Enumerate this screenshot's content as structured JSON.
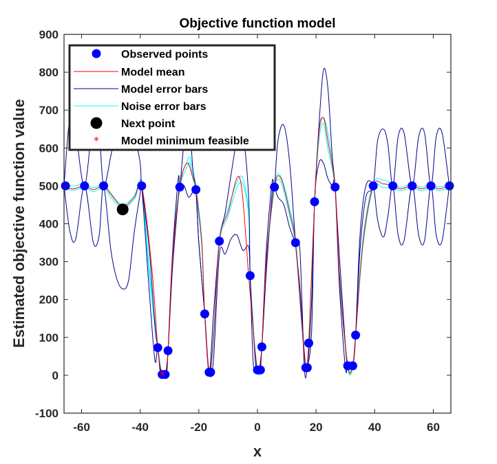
{
  "chart_data": {
    "type": "line",
    "title": "Objective function model",
    "xlabel": "x",
    "ylabel": "Estimated objective function value",
    "xlim": [
      -66,
      66
    ],
    "ylim": [
      -100,
      900
    ],
    "xticks": [
      -60,
      -40,
      -20,
      0,
      20,
      40,
      60
    ],
    "yticks": [
      -100,
      0,
      100,
      200,
      300,
      400,
      500,
      600,
      700,
      800,
      900
    ],
    "legend_position": "top-left",
    "colors": {
      "observed": "#0000ff",
      "model_mean": "#ff0000",
      "model_error": "#00008b",
      "noise_error": "#00ffff",
      "next_point": "#000000",
      "model_min": "#ff0000"
    },
    "legend": [
      "Observed points",
      "Model mean",
      "Model error bars",
      "Noise error bars",
      "Next point",
      "Model minimum feasible"
    ],
    "observed_points": [
      {
        "x": -65.5,
        "y": 500
      },
      {
        "x": -59,
        "y": 500
      },
      {
        "x": -52.5,
        "y": 500
      },
      {
        "x": -39.5,
        "y": 500
      },
      {
        "x": -34,
        "y": 73
      },
      {
        "x": -32.5,
        "y": 2
      },
      {
        "x": -31.5,
        "y": 2
      },
      {
        "x": -30.5,
        "y": 65
      },
      {
        "x": -26.5,
        "y": 497
      },
      {
        "x": -21,
        "y": 490
      },
      {
        "x": -18,
        "y": 162
      },
      {
        "x": -16.5,
        "y": 8
      },
      {
        "x": -16,
        "y": 8
      },
      {
        "x": -13,
        "y": 354
      },
      {
        "x": -2.5,
        "y": 263
      },
      {
        "x": 0,
        "y": 14
      },
      {
        "x": 1,
        "y": 14
      },
      {
        "x": 1.5,
        "y": 75
      },
      {
        "x": 5.8,
        "y": 497
      },
      {
        "x": 13,
        "y": 350
      },
      {
        "x": 16.5,
        "y": 20
      },
      {
        "x": 17,
        "y": 20
      },
      {
        "x": 17.5,
        "y": 85
      },
      {
        "x": 19.5,
        "y": 458
      },
      {
        "x": 26.5,
        "y": 497
      },
      {
        "x": 30.8,
        "y": 25
      },
      {
        "x": 32.5,
        "y": 25
      },
      {
        "x": 33.5,
        "y": 106
      },
      {
        "x": 39.5,
        "y": 500
      },
      {
        "x": 46.2,
        "y": 500
      },
      {
        "x": 52.8,
        "y": 500
      },
      {
        "x": 59.2,
        "y": 500
      },
      {
        "x": 65.5,
        "y": 500
      }
    ],
    "next_point": {
      "x": -46,
      "y": 438
    },
    "model_minimum": {
      "x": -32.5,
      "y": 2
    },
    "model_mean": {
      "x": [
        -66,
        -63,
        -59,
        -56,
        -52.5,
        -50,
        -46,
        -42,
        -39.5,
        -36,
        -34,
        -32.5,
        -31,
        -30.5,
        -29,
        -26.5,
        -24,
        -22,
        -21,
        -19,
        -18,
        -16.5,
        -15,
        -13,
        -10,
        -6,
        -3,
        -1,
        0,
        1,
        1.5,
        3,
        5.8,
        8,
        11,
        13,
        15,
        16.5,
        17.5,
        19.5,
        21,
        22.5,
        24,
        26.5,
        28,
        30.8,
        32.5,
        33.5,
        36,
        39.5,
        43,
        46.2,
        49,
        52.8,
        56,
        59.2,
        62,
        65.5
      ],
      "y": [
        500,
        492,
        500,
        490,
        500,
        478,
        445,
        470,
        500,
        280,
        73,
        2,
        5,
        65,
        310,
        497,
        560,
        520,
        490,
        350,
        162,
        8,
        100,
        354,
        430,
        520,
        263,
        80,
        14,
        14,
        75,
        300,
        497,
        520,
        430,
        350,
        150,
        20,
        85,
        458,
        640,
        680,
        620,
        497,
        260,
        25,
        25,
        106,
        350,
        500,
        505,
        500,
        492,
        500,
        492,
        500,
        492,
        500
      ]
    },
    "model_error_upper": {
      "x": [
        -66,
        -64,
        -62,
        -59,
        -56,
        -54,
        -52.5,
        -50,
        -48,
        -46,
        -44,
        -42,
        -40,
        -39.5,
        -37,
        -35,
        -34,
        -33,
        -31.5,
        -30.5,
        -29,
        -27,
        -26.5,
        -25,
        -23.5,
        -22,
        -21,
        -20,
        -18,
        -16.5,
        -15,
        -13,
        -11,
        -9,
        -7,
        -5,
        -3,
        -2.5,
        -1.5,
        -0.5,
        0.5,
        1.5,
        3,
        5,
        5.8,
        7,
        9,
        11,
        13,
        14.5,
        16,
        17,
        18.5,
        19.5,
        21,
        22.5,
        24,
        25.5,
        26.5,
        28,
        30,
        30.8,
        32.5,
        33.5,
        35,
        37,
        39.5,
        41,
        43,
        44.5,
        46.2,
        48,
        50,
        52.8,
        55,
        57,
        59.2,
        61,
        63,
        65.5,
        66
      ],
      "y": [
        500,
        680,
        640,
        500,
        680,
        640,
        500,
        580,
        660,
        690,
        665,
        630,
        560,
        500,
        340,
        130,
        73,
        3,
        2,
        65,
        320,
        520,
        497,
        620,
        690,
        540,
        490,
        350,
        162,
        8,
        160,
        354,
        430,
        530,
        620,
        640,
        470,
        263,
        130,
        20,
        14,
        75,
        330,
        510,
        497,
        620,
        660,
        560,
        350,
        230,
        60,
        20,
        200,
        458,
        660,
        805,
        760,
        580,
        497,
        310,
        80,
        25,
        25,
        106,
        330,
        470,
        500,
        620,
        650,
        610,
        500,
        630,
        640,
        500,
        630,
        640,
        500,
        630,
        640,
        500,
        500
      ]
    },
    "model_error_lower": {
      "x": [
        -66,
        -64,
        -62,
        -59,
        -56,
        -54,
        -52.5,
        -50,
        -48,
        -46,
        -44,
        -42,
        -40,
        -39.5,
        -37,
        -35,
        -34,
        -33,
        -31.5,
        -30.5,
        -29,
        -27,
        -26.5,
        -25,
        -23.5,
        -22,
        -21,
        -20,
        -18,
        -16.5,
        -15,
        -13,
        -11,
        -9,
        -7,
        -5,
        -3,
        -2.5,
        -1.5,
        -0.5,
        0.5,
        1.5,
        3,
        5,
        5.8,
        7,
        9,
        11,
        13,
        14.5,
        16,
        17,
        18.5,
        19.5,
        21,
        22.5,
        24,
        25.5,
        26.5,
        28,
        30,
        30.8,
        32.5,
        33.5,
        35,
        37,
        39.5,
        41,
        43,
        44.5,
        46.2,
        48,
        50,
        52.8,
        55,
        57,
        59.2,
        61,
        63,
        65.5,
        66
      ],
      "y": [
        500,
        380,
        360,
        500,
        350,
        370,
        500,
        330,
        255,
        228,
        250,
        380,
        480,
        500,
        230,
        40,
        73,
        1,
        2,
        65,
        280,
        470,
        497,
        500,
        470,
        485,
        490,
        350,
        162,
        8,
        40,
        320,
        320,
        360,
        370,
        330,
        340,
        263,
        40,
        10,
        14,
        75,
        270,
        480,
        497,
        470,
        450,
        390,
        350,
        330,
        20,
        20,
        120,
        458,
        560,
        560,
        520,
        500,
        497,
        230,
        20,
        25,
        25,
        106,
        370,
        500,
        500,
        410,
        365,
        420,
        500,
        370,
        355,
        500,
        370,
        355,
        500,
        370,
        355,
        500,
        500
      ]
    },
    "noise_error_upper": {
      "x": [
        -66,
        -63,
        -59,
        -56,
        -52.5,
        -50,
        -46,
        -42,
        -39.5,
        -37,
        -34,
        -32.5,
        -31,
        -30.5,
        -29,
        -26.5,
        -24,
        -23,
        -22,
        -21,
        -19,
        -18,
        -16.5,
        -15,
        -13,
        -10,
        -7,
        -5,
        -3,
        -2.5,
        -1,
        0,
        1,
        1.5,
        3,
        5.8,
        8,
        11,
        13,
        15,
        16.5,
        17.5,
        19.5,
        21,
        22.5,
        24,
        26.5,
        28,
        30.8,
        32.5,
        33.5,
        36,
        39.5,
        43,
        46.2,
        49,
        52.8,
        56,
        59.2,
        62,
        65.5
      ],
      "y": [
        505,
        500,
        505,
        495,
        505,
        480,
        450,
        475,
        505,
        290,
        78,
        5,
        8,
        70,
        320,
        505,
        565,
        575,
        540,
        500,
        360,
        170,
        14,
        110,
        360,
        440,
        510,
        520,
        430,
        270,
        90,
        20,
        20,
        80,
        310,
        505,
        525,
        440,
        360,
        160,
        28,
        92,
        465,
        650,
        680,
        640,
        505,
        270,
        30,
        30,
        112,
        360,
        505,
        515,
        505,
        497,
        505,
        497,
        505,
        497,
        505
      ]
    },
    "noise_error_lower": {
      "x": [
        -66,
        -63,
        -59,
        -56,
        -52.5,
        -50,
        -46,
        -42,
        -39.5,
        -37,
        -34,
        -32.5,
        -31,
        -30.5,
        -29,
        -26.5,
        -24,
        -23,
        -22,
        -21,
        -19,
        -18,
        -16.5,
        -15,
        -13,
        -10,
        -7,
        -5,
        -3,
        -2.5,
        -1,
        0,
        1,
        1.5,
        3,
        5.8,
        8,
        11,
        13,
        15,
        16.5,
        17.5,
        19.5,
        21,
        22.5,
        24,
        26.5,
        28,
        30.8,
        32.5,
        33.5,
        36,
        39.5,
        43,
        46.2,
        49,
        52.8,
        56,
        59.2,
        62,
        65.5
      ],
      "y": [
        495,
        488,
        495,
        485,
        495,
        470,
        440,
        465,
        495,
        270,
        68,
        0,
        2,
        60,
        300,
        490,
        550,
        560,
        520,
        480,
        340,
        155,
        4,
        90,
        348,
        420,
        495,
        505,
        420,
        256,
        70,
        8,
        8,
        70,
        290,
        490,
        510,
        420,
        340,
        140,
        12,
        78,
        450,
        620,
        665,
        600,
        490,
        250,
        20,
        20,
        100,
        340,
        495,
        495,
        495,
        487,
        495,
        487,
        495,
        487,
        495
      ]
    }
  }
}
